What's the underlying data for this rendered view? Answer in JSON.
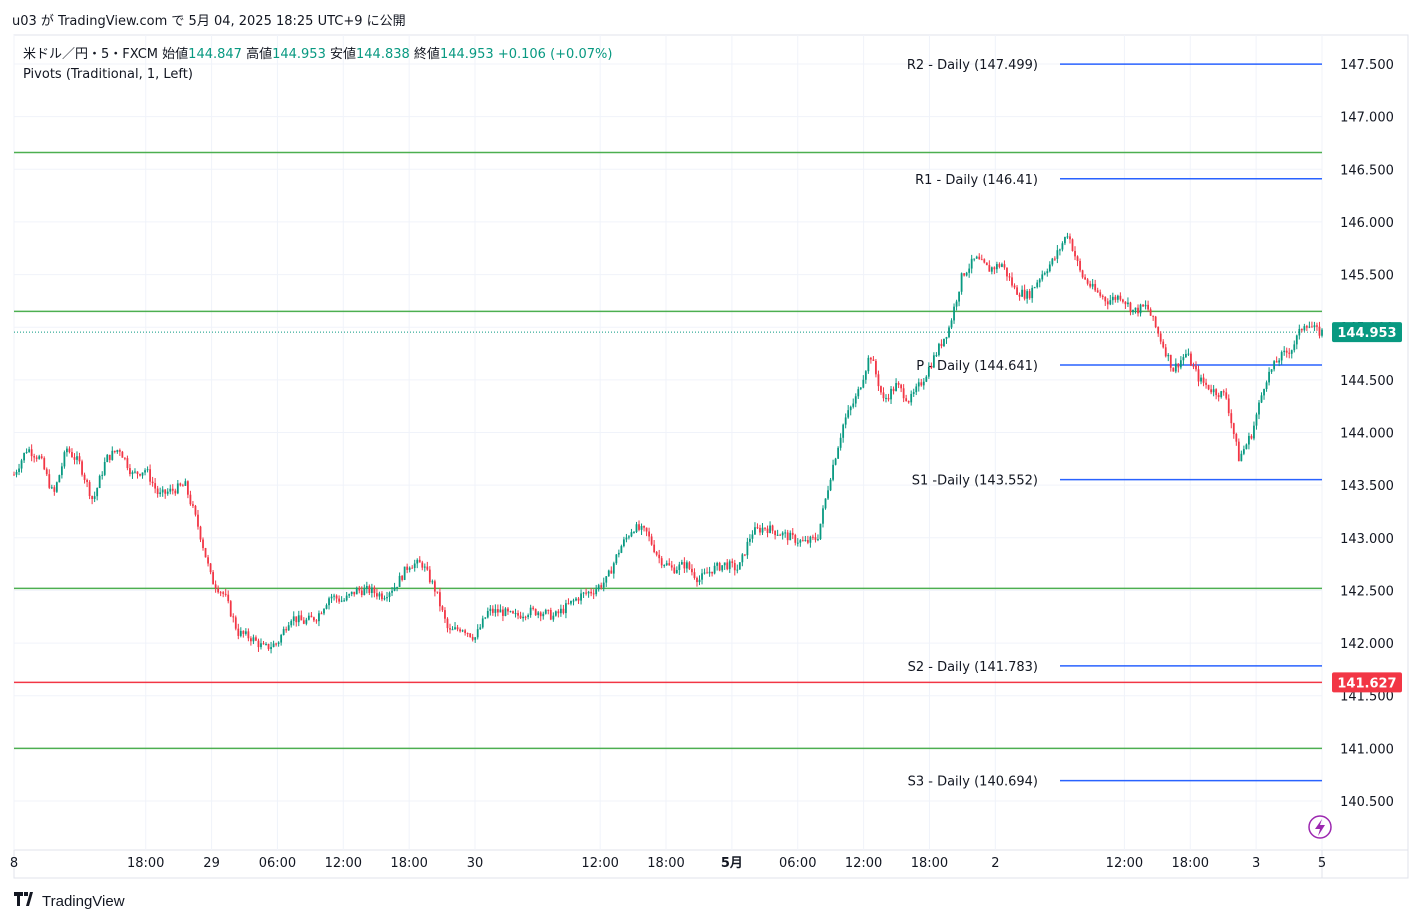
{
  "header": {
    "publish_line": "u03 が TradingView.com で 5月 04, 2025 18:25 UTC+9 に公開"
  },
  "legend": {
    "symbol": "米ドル／円・5・FXCM",
    "open_label": "始値",
    "open": "144.847",
    "high_label": "高値",
    "high": "144.953",
    "low_label": "安値",
    "low": "144.838",
    "close_label": "終値",
    "close": "144.953",
    "change": "+0.106 (+0.07%)",
    "indicator": "Pivots (Traditional, 1, Left)"
  },
  "footer": {
    "brand": "TradingView"
  },
  "colors": {
    "up": "#089981",
    "down": "#f23645",
    "pivot": "#2962ff",
    "hline_green": "#4caf50",
    "hline_red": "#f23645",
    "price_badge": "#089981",
    "grid": "#f0f3fa"
  },
  "chart_data": {
    "type": "candlestick",
    "title": "米ドル／円・5・FXCM",
    "ylim": [
      140.2,
      147.8
    ],
    "y_ticks": [
      "147.500",
      "147.000",
      "146.500",
      "146.000",
      "145.500",
      "145.000",
      "144.500",
      "144.000",
      "143.500",
      "143.000",
      "142.500",
      "142.000",
      "141.500",
      "141.000",
      "140.500"
    ],
    "x_ticks": [
      {
        "label": "8",
        "bold": false,
        "t": 0
      },
      {
        "label": "18:00",
        "bold": false,
        "t": 10
      },
      {
        "label": "29",
        "bold": false,
        "t": 15
      },
      {
        "label": "06:00",
        "bold": false,
        "t": 20
      },
      {
        "label": "12:00",
        "bold": false,
        "t": 25
      },
      {
        "label": "18:00",
        "bold": false,
        "t": 30
      },
      {
        "label": "30",
        "bold": false,
        "t": 35
      },
      {
        "label": "12:00",
        "bold": false,
        "t": 44.5
      },
      {
        "label": "18:00",
        "bold": false,
        "t": 49.5
      },
      {
        "label": "5月",
        "bold": true,
        "t": 54.5
      },
      {
        "label": "06:00",
        "bold": false,
        "t": 59.5
      },
      {
        "label": "12:00",
        "bold": false,
        "t": 64.5
      },
      {
        "label": "18:00",
        "bold": false,
        "t": 69.5
      },
      {
        "label": "2",
        "bold": false,
        "t": 74.5
      },
      {
        "label": "12:00",
        "bold": false,
        "t": 84.3
      },
      {
        "label": "18:00",
        "bold": false,
        "t": 89.3
      },
      {
        "label": "3",
        "bold": false,
        "t": 94.3
      },
      {
        "label": "5",
        "bold": false,
        "t": 99.3
      }
    ],
    "price_path": [
      [
        0,
        143.6
      ],
      [
        1,
        143.85
      ],
      [
        2,
        143.75
      ],
      [
        3,
        143.4
      ],
      [
        4,
        143.85
      ],
      [
        5,
        143.7
      ],
      [
        6,
        143.35
      ],
      [
        7,
        143.75
      ],
      [
        8,
        143.85
      ],
      [
        9,
        143.6
      ],
      [
        10,
        143.65
      ],
      [
        11,
        143.4
      ],
      [
        12,
        143.45
      ],
      [
        13,
        143.5
      ],
      [
        14,
        143.1
      ],
      [
        15,
        142.6
      ],
      [
        16,
        142.45
      ],
      [
        17,
        142.1
      ],
      [
        18,
        142.05
      ],
      [
        19,
        141.95
      ],
      [
        20,
        142.0
      ],
      [
        21,
        142.25
      ],
      [
        22,
        142.2
      ],
      [
        23,
        142.25
      ],
      [
        24,
        142.45
      ],
      [
        25,
        142.4
      ],
      [
        26,
        142.5
      ],
      [
        27,
        142.5
      ],
      [
        28,
        142.45
      ],
      [
        29,
        142.55
      ],
      [
        30,
        142.75
      ],
      [
        31,
        142.75
      ],
      [
        32,
        142.5
      ],
      [
        33,
        142.1
      ],
      [
        34,
        142.15
      ],
      [
        35,
        142.05
      ],
      [
        36,
        142.3
      ],
      [
        37,
        142.3
      ],
      [
        38,
        142.25
      ],
      [
        39,
        142.3
      ],
      [
        40,
        142.3
      ],
      [
        41,
        142.25
      ],
      [
        42,
        142.35
      ],
      [
        43,
        142.45
      ],
      [
        44,
        142.5
      ],
      [
        45,
        142.6
      ],
      [
        46,
        142.9
      ],
      [
        47,
        143.1
      ],
      [
        48,
        143.05
      ],
      [
        49,
        142.8
      ],
      [
        50,
        142.7
      ],
      [
        51,
        142.75
      ],
      [
        52,
        142.6
      ],
      [
        53,
        142.7
      ],
      [
        54,
        142.75
      ],
      [
        55,
        142.7
      ],
      [
        56,
        143.05
      ],
      [
        57,
        143.1
      ],
      [
        58,
        143.05
      ],
      [
        59,
        143.0
      ],
      [
        60,
        142.95
      ],
      [
        61,
        143.0
      ],
      [
        62,
        143.6
      ],
      [
        63,
        144.1
      ],
      [
        64,
        144.35
      ],
      [
        65,
        144.75
      ],
      [
        66,
        144.3
      ],
      [
        67,
        144.45
      ],
      [
        68,
        144.3
      ],
      [
        69,
        144.5
      ],
      [
        70,
        144.75
      ],
      [
        71,
        145.0
      ],
      [
        72,
        145.5
      ],
      [
        73,
        145.65
      ],
      [
        74,
        145.55
      ],
      [
        75,
        145.6
      ],
      [
        76,
        145.35
      ],
      [
        77,
        145.3
      ],
      [
        78,
        145.5
      ],
      [
        79,
        145.65
      ],
      [
        80,
        145.9
      ],
      [
        81,
        145.5
      ],
      [
        82,
        145.35
      ],
      [
        83,
        145.25
      ],
      [
        84,
        145.3
      ],
      [
        85,
        145.15
      ],
      [
        86,
        145.2
      ],
      [
        87,
        144.9
      ],
      [
        88,
        144.6
      ],
      [
        89,
        144.75
      ],
      [
        90,
        144.5
      ],
      [
        91,
        144.4
      ],
      [
        92,
        144.35
      ],
      [
        93,
        143.75
      ],
      [
        94,
        144.0
      ],
      [
        95,
        144.5
      ],
      [
        96,
        144.7
      ],
      [
        97,
        144.8
      ],
      [
        98,
        145.05
      ],
      [
        99,
        144.953
      ]
    ],
    "pivots": [
      {
        "label": "R2 - Daily (147.499)",
        "value": 147.499
      },
      {
        "label": "R1 - Daily (146.41)",
        "value": 146.41
      },
      {
        "label": "P - Daily (144.641)",
        "value": 144.641
      },
      {
        "label": "S1 -Daily (143.552)",
        "value": 143.552
      },
      {
        "label": "S2 - Daily (141.783)",
        "value": 141.783
      },
      {
        "label": "S3 - Daily (140.694)",
        "value": 140.694
      }
    ],
    "horizontal_lines": [
      {
        "value": 146.66,
        "color": "green"
      },
      {
        "value": 145.15,
        "color": "green"
      },
      {
        "value": 142.52,
        "color": "green"
      },
      {
        "value": 141.0,
        "color": "green"
      },
      {
        "value": 141.627,
        "color": "red"
      }
    ],
    "last_price": "144.953",
    "red_line_label": "141.627"
  }
}
